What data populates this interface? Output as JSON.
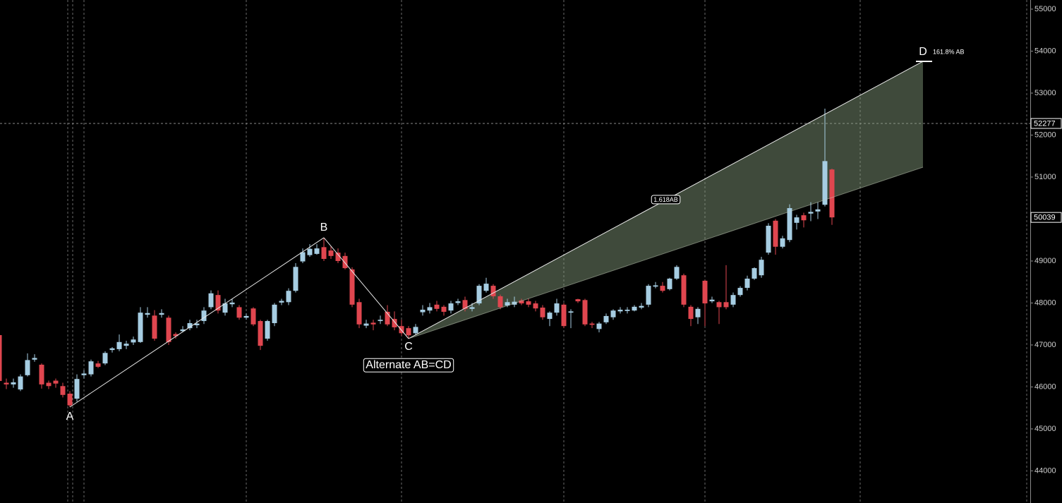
{
  "chart_data": {
    "type": "candlestick",
    "up_color": "#a6cde2",
    "down_color": "#e0464f",
    "open": [
      47235,
      46100,
      46060,
      45940,
      46280,
      46650,
      46530,
      46100,
      46150,
      46020,
      45840,
      45720,
      46280,
      46300,
      46560,
      46560,
      46880,
      46900,
      46980,
      47060,
      47070,
      47720,
      47700,
      47720,
      47650,
      47260,
      47330,
      47400,
      47470,
      47570,
      47900,
      48190,
      47770,
      47970,
      47900,
      47650,
      47870,
      47570,
      47150,
      47520,
      48010,
      48020,
      48290,
      48990,
      49140,
      49170,
      49330,
      49250,
      49200,
      49120,
      48800,
      48020,
      47460,
      47530,
      47570,
      47790,
      47620,
      47450,
      47400,
      47280,
      47780,
      47820,
      47960,
      47910,
      47820,
      48000,
      48070,
      47860,
      47990,
      48290,
      48410,
      48160,
      47940,
      47960,
      48060,
      48040,
      47990,
      47890,
      47620,
      47770,
      47960,
      47770,
      48090,
      48070,
      47510,
      47380,
      47540,
      47660,
      47800,
      47810,
      47820,
      47890,
      47960,
      48390,
      48410,
      48330,
      48580,
      48660,
      47910,
      47660,
      48530,
      48040,
      48020,
      48020,
      47960,
      48190,
      48360,
      48580,
      48660,
      49200,
      49960,
      49340,
      49500,
      49910,
      50090,
      50130,
      50180,
      50340,
      51180
    ],
    "high": [
      47300,
      46200,
      46200,
      46300,
      46800,
      46780,
      46560,
      46150,
      46200,
      46100,
      45900,
      46300,
      46400,
      46650,
      46620,
      46850,
      46950,
      47250,
      47100,
      47200,
      47900,
      47900,
      47830,
      47850,
      47700,
      47300,
      47450,
      47600,
      47600,
      47900,
      48300,
      48300,
      48100,
      48100,
      47950,
      47750,
      47900,
      47600,
      47600,
      48000,
      48100,
      48350,
      48950,
      49300,
      49400,
      49400,
      49555,
      49350,
      49300,
      49200,
      48850,
      48100,
      47600,
      47600,
      47700,
      47950,
      47800,
      47600,
      47450,
      47500,
      47950,
      48000,
      48050,
      47950,
      48050,
      48100,
      48150,
      48000,
      48450,
      48600,
      48450,
      48200,
      48100,
      48150,
      48100,
      48100,
      48050,
      47950,
      47800,
      48100,
      48000,
      47850,
      48100,
      48100,
      47550,
      47550,
      47750,
      47850,
      47900,
      47900,
      47950,
      48000,
      48450,
      48500,
      48500,
      48600,
      48900,
      48700,
      47950,
      47900,
      48550,
      48150,
      48050,
      48900,
      48250,
      48400,
      48650,
      48850,
      49100,
      49900,
      50000,
      49600,
      50350,
      50100,
      50150,
      50400,
      50400,
      52630,
      51200
    ],
    "low": [
      46000,
      45950,
      45980,
      45900,
      46250,
      46600,
      45960,
      45950,
      45980,
      45750,
      45521,
      45650,
      46200,
      46250,
      46450,
      46520,
      46820,
      46850,
      46900,
      47000,
      47050,
      47650,
      47100,
      47650,
      47000,
      47150,
      47300,
      47350,
      47400,
      47500,
      47850,
      47750,
      47700,
      47900,
      47600,
      47600,
      47450,
      46880,
      47100,
      47450,
      47950,
      47950,
      48250,
      48950,
      49100,
      49150,
      49000,
      49050,
      48950,
      48800,
      47900,
      47400,
      47400,
      47350,
      47500,
      47450,
      47350,
      47220,
      47151,
      47250,
      47700,
      47750,
      47800,
      47700,
      47750,
      47950,
      47800,
      47800,
      47950,
      48250,
      48100,
      47850,
      47900,
      47900,
      47950,
      47900,
      47800,
      47600,
      47450,
      47700,
      47400,
      47400,
      48000,
      47450,
      47400,
      47300,
      47500,
      47600,
      47750,
      47750,
      47800,
      47850,
      47900,
      48350,
      48250,
      48300,
      48550,
      47900,
      47450,
      47500,
      47450,
      48000,
      47500,
      47850,
      47900,
      48150,
      48300,
      48550,
      48600,
      49150,
      49150,
      49300,
      49450,
      49750,
      49800,
      49950,
      50000,
      50300,
      49860
    ],
    "close": [
      46142,
      46060,
      46110,
      46250,
      46640,
      46690,
      46060,
      46020,
      46080,
      45810,
      45560,
      46190,
      46320,
      46610,
      46480,
      46810,
      46920,
      47070,
      47030,
      47130,
      47770,
      47760,
      47150,
      47760,
      47070,
      47210,
      47370,
      47520,
      47510,
      47820,
      48230,
      47820,
      47990,
      48010,
      47650,
      47690,
      47490,
      46980,
      47570,
      47960,
      48050,
      48290,
      48860,
      49210,
      49290,
      49300,
      49050,
      49120,
      49000,
      48830,
      47960,
      47490,
      47510,
      47490,
      47600,
      47490,
      47420,
      47280,
      47230,
      47430,
      47840,
      47900,
      47860,
      47790,
      47990,
      48040,
      47860,
      47900,
      48410,
      48460,
      48160,
      47900,
      48020,
      48030,
      47990,
      47960,
      47870,
      47660,
      47770,
      47990,
      47450,
      47800,
      48040,
      47490,
      47480,
      47510,
      47690,
      47820,
      47840,
      47840,
      47910,
      47930,
      48410,
      48420,
      48290,
      48580,
      48860,
      47960,
      47620,
      47860,
      47990,
      48080,
      47900,
      47900,
      48190,
      48360,
      48580,
      48830,
      49030,
      49840,
      49340,
      49540,
      50260,
      50040,
      49970,
      50170,
      50230,
      51380,
      50039
    ],
    "xlim": [
      0.1,
      146.1
    ],
    "xticks": [
      9.7,
      10.4,
      12,
      35,
      57,
      80,
      100,
      122,
      145.6
    ],
    "ylim": [
      43235,
      55218
    ],
    "yticks": [
      44000,
      45000,
      46000,
      47000,
      48000,
      49000,
      50000,
      51000,
      52000,
      53000,
      54000,
      55000
    ],
    "price_labels": [
      52277,
      50039
    ],
    "pattern": {
      "name": "Alternate AB=CD",
      "points": [
        {
          "label": "A",
          "x": 10,
          "y": 45521
        },
        {
          "label": "B",
          "x": 46,
          "y": 49555
        },
        {
          "label": "C",
          "x": 58,
          "y": 47151
        },
        {
          "label": "D",
          "x": 130.9,
          "y": 53756
        }
      ],
      "projection_low": 51235,
      "projection_label": "1.618AB",
      "target_label": "161.8% AB"
    }
  }
}
